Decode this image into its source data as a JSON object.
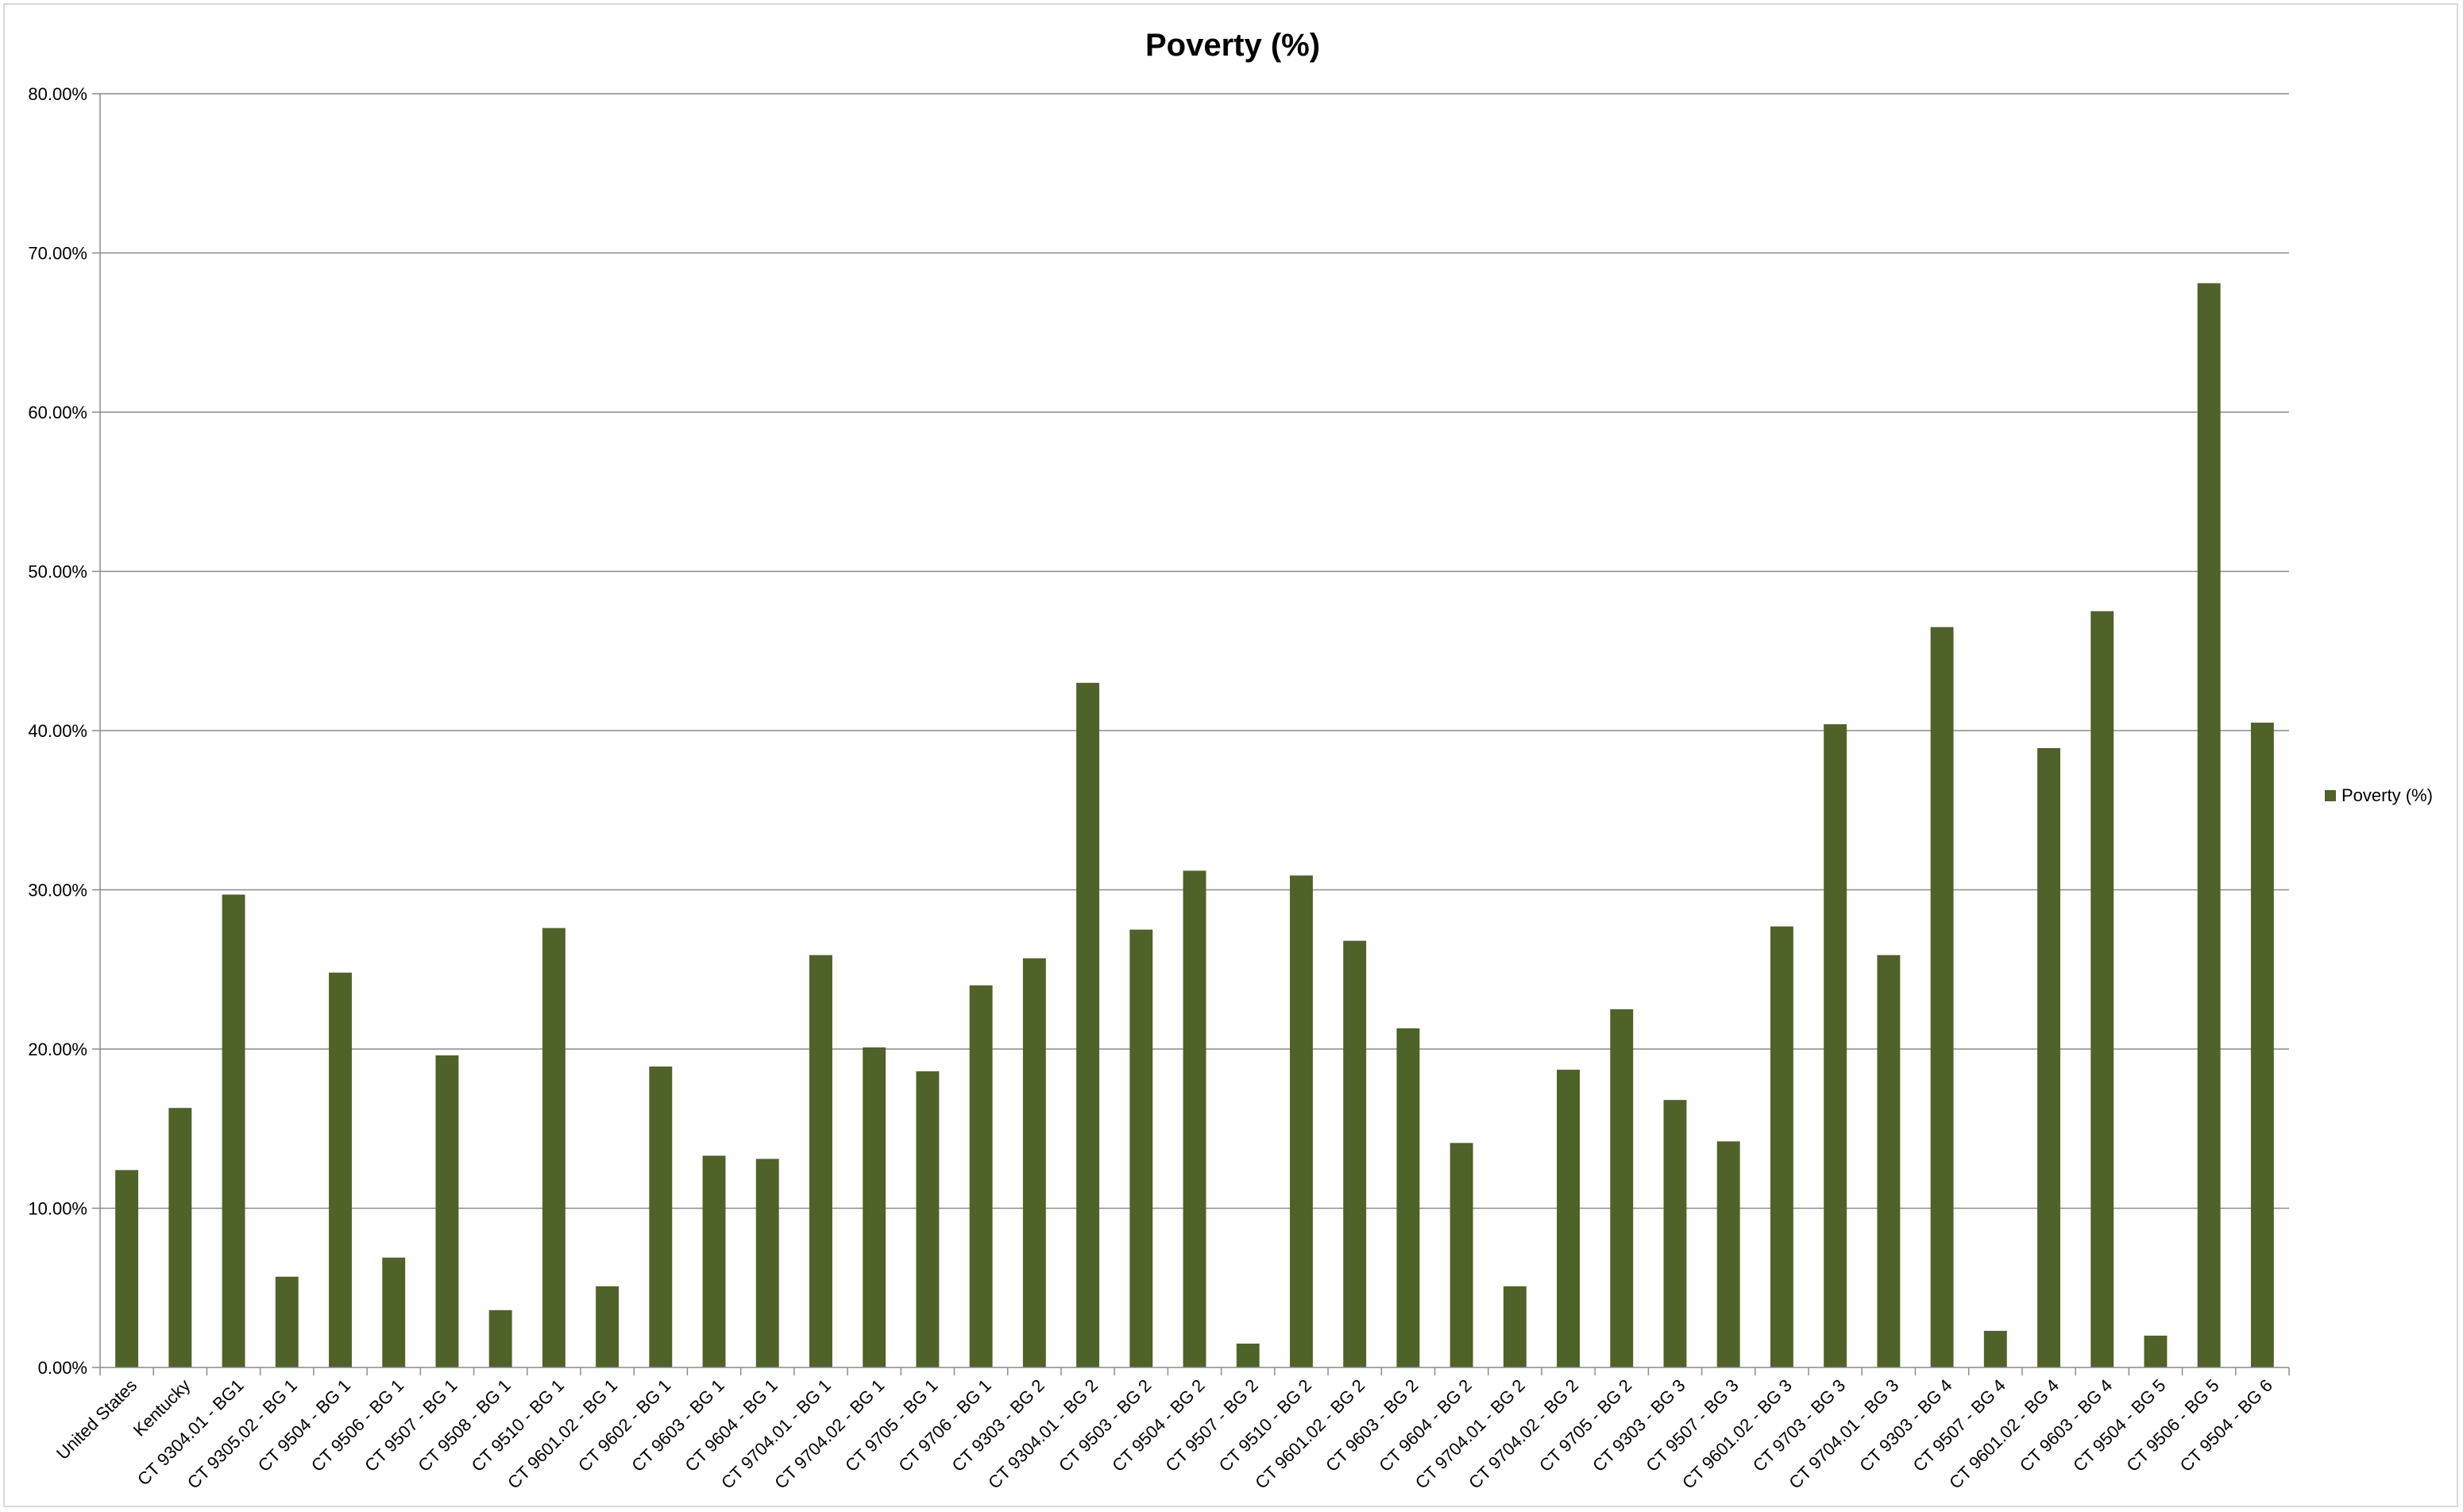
{
  "chart_data": {
    "type": "bar",
    "title": "Poverty (%)",
    "xlabel": "",
    "ylabel": "",
    "ylim": [
      0,
      80
    ],
    "ytick_step": 10,
    "ytick_labels": [
      "0.00%",
      "10.00%",
      "20.00%",
      "30.00%",
      "40.00%",
      "50.00%",
      "60.00%",
      "70.00%",
      "80.00%"
    ],
    "grid": true,
    "legend_position": "right",
    "categories": [
      "United States",
      "Kentucky",
      "CT 9304.01 - BG1",
      "CT 9305.02 - BG 1",
      "CT 9504 - BG 1",
      "CT 9506 - BG 1",
      "CT 9507 - BG 1",
      "CT 9508 - BG 1",
      "CT 9510 - BG 1",
      "CT 9601.02 - BG 1",
      "CT 9602 - BG 1",
      "CT 9603 - BG 1",
      "CT 9604 - BG 1",
      "CT 9704.01 - BG 1",
      "CT 9704.02 - BG 1",
      "CT 9705 - BG 1",
      "CT 9706 - BG 1",
      "CT 9303 - BG 2",
      "CT 9304.01 - BG 2",
      "CT 9503 - BG 2",
      "CT 9504 - BG 2",
      "CT 9507 - BG 2",
      "CT 9510 - BG 2",
      "CT 9601.02 - BG 2",
      "CT 9603 - BG 2",
      "CT 9604 - BG 2",
      "CT 9704.01 - BG 2",
      "CT 9704.02 - BG 2",
      "CT 9705 - BG 2",
      "CT 9303 - BG 3",
      "CT 9507 - BG 3",
      "CT 9601.02 - BG 3",
      "CT 9703 - BG 3",
      "CT 9704.01 - BG 3",
      "CT 9303 - BG 4",
      "CT 9507 - BG 4",
      "CT 9601.02 - BG 4",
      "CT 9603 - BG 4",
      "CT 9504 - BG 5",
      "CT 9506 - BG 5",
      "CT 9504 - BG 6"
    ],
    "series": [
      {
        "name": "Poverty (%)",
        "color": "#4f6228",
        "values": [
          12.4,
          16.3,
          29.7,
          5.7,
          24.8,
          6.9,
          19.6,
          3.6,
          27.6,
          5.1,
          18.9,
          13.3,
          13.1,
          25.9,
          20.1,
          18.6,
          24.0,
          25.7,
          43.0,
          27.5,
          31.2,
          1.5,
          30.9,
          26.8,
          21.3,
          14.1,
          5.1,
          18.7,
          22.5,
          16.8,
          14.2,
          27.7,
          40.4,
          25.9,
          46.5,
          2.3,
          38.9,
          47.5,
          2.0,
          68.1,
          40.5
        ]
      }
    ]
  }
}
